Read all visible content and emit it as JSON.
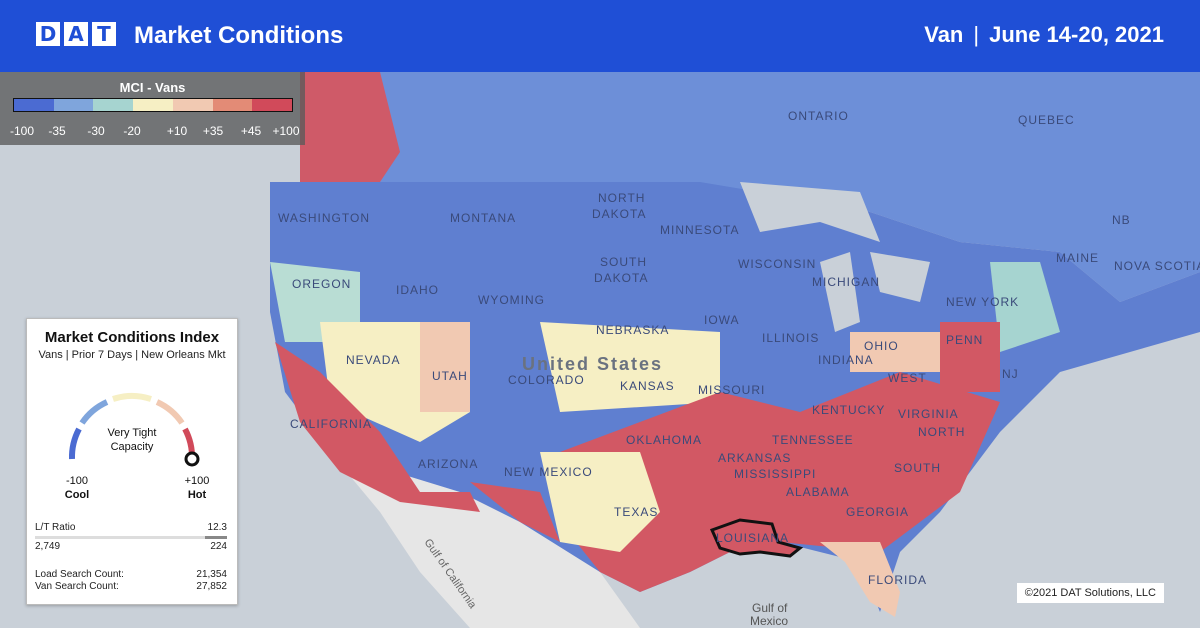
{
  "header": {
    "logo_letters": [
      "D",
      "A",
      "T"
    ],
    "title": "Market Conditions",
    "equipment": "Van",
    "separator": "|",
    "date_range": "June 14-20, 2021"
  },
  "legend": {
    "title": "MCI - Vans",
    "ticks": [
      "-100",
      "-35",
      "-30",
      "-20",
      "+10",
      "+35",
      "+45",
      "+100"
    ],
    "colors": [
      "#4b6bd2",
      "#7fa5dc",
      "#a6d4d0",
      "#f6efc4",
      "#f1c9b2",
      "#e38b76",
      "#d14a5a"
    ]
  },
  "card": {
    "title": "Market Conditions Index",
    "subtitle": "Vans | Prior 7 Days | New Orleans Mkt",
    "gauge_center_line1": "Very Tight",
    "gauge_center_line2": "Capacity",
    "gauge_value_fraction": 1.0,
    "min_value": "-100",
    "min_label": "Cool",
    "max_value": "+100",
    "max_label": "Hot",
    "lt_label": "L/T Ratio",
    "lt_value": "12.3",
    "loads": "2,749",
    "trucks": "224",
    "load_search_label": "Load Search Count:",
    "load_search_value": "21,354",
    "van_search_label": "Van Search Count:",
    "van_search_value": "27,852"
  },
  "map_labels": {
    "ontario": "ONTARIO",
    "quebec": "QUEBEC",
    "washington": "WASHINGTON",
    "montana": "MONTANA",
    "north_dakota_1": "NORTH",
    "north_dakota_2": "DAKOTA",
    "minnesota": "MINNESOTA",
    "oregon": "OREGON",
    "idaho": "IDAHO",
    "south_dakota_1": "SOUTH",
    "south_dakota_2": "DAKOTA",
    "wisconsin": "WISCONSIN",
    "michigan": "MICHIGAN",
    "wyoming": "WYOMING",
    "nebraska": "NEBRASKA",
    "iowa": "IOWA",
    "nevada": "NEVADA",
    "utah": "UTAH",
    "colorado": "COLORADO",
    "kansas": "KANSAS",
    "united_states": "United States",
    "illinois": "ILLINOIS",
    "indiana": "INDIANA",
    "ohio": "OHIO",
    "penn": "PENN",
    "new_york": "NEW YORK",
    "maine": "MAINE",
    "nova_scotia": "NOVA SCOTIA",
    "nb": "NB",
    "nj": "NJ",
    "california": "CALIFORNIA",
    "arizona": "ARIZONA",
    "new_mexico": "NEW MEXICO",
    "oklahoma": "OKLAHOMA",
    "missouri": "MISSOURI",
    "kentucky": "KENTUCKY",
    "west_virginia": "WEST",
    "virginia": "VIRGINIA",
    "tennessee": "TENNESSEE",
    "north_carolina": "NORTH",
    "arkansas": "ARKANSAS",
    "mississippi": "MISSISSIPPI",
    "alabama": "ALABAMA",
    "georgia": "GEORGIA",
    "south_carolina": "SOUTH",
    "texas": "TEXAS",
    "louisiana": "LOUISIANA",
    "florida": "FLORIDA",
    "gulf_mexico_1": "Gulf of",
    "gulf_mexico_2": "Mexico",
    "gulf_california": "Gulf of California"
  },
  "copyright": "©2021 DAT Solutions, LLC"
}
